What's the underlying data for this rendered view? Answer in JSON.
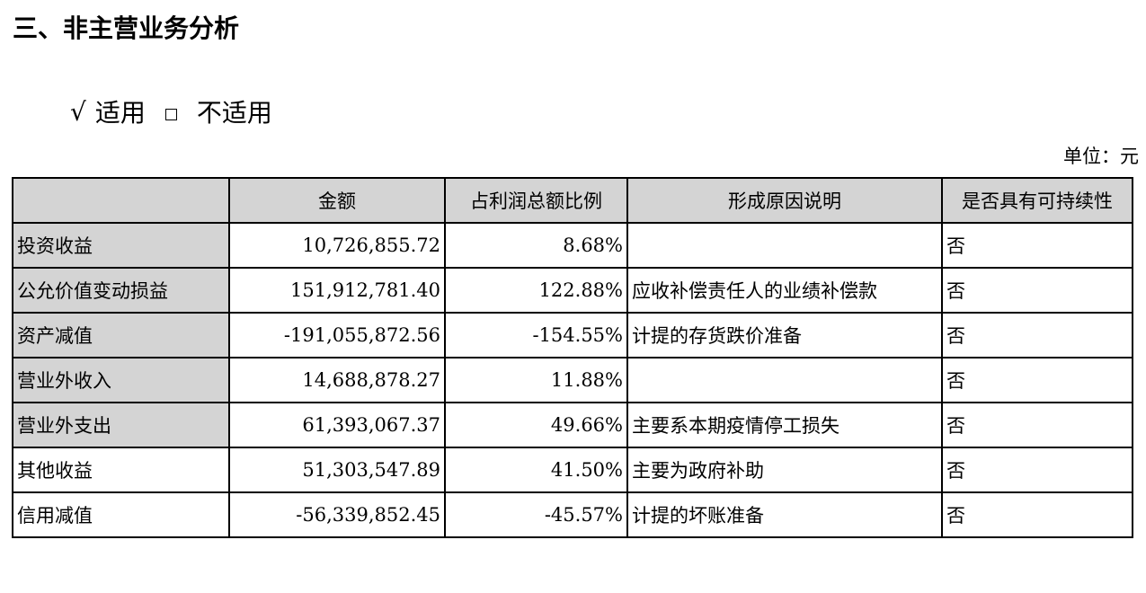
{
  "section_title": "三、非主营业务分析",
  "applicability": {
    "check_mark": "√",
    "applicable_label": "适用",
    "not_applicable_label": "不适用"
  },
  "unit_label": "单位：元",
  "table": {
    "headers": [
      "",
      "金额",
      "占利润总额比例",
      "形成原因说明",
      "是否具有可持续性"
    ],
    "rows": [
      {
        "item": "投资收益",
        "amount": "10,726,855.72",
        "ratio": "8.68%",
        "reason": "",
        "sustainable": "否"
      },
      {
        "item": "公允价值变动损益",
        "amount": "151,912,781.40",
        "ratio": "122.88%",
        "reason": "应收补偿责任人的业绩补偿款",
        "sustainable": "否"
      },
      {
        "item": "资产减值",
        "amount": "-191,055,872.56",
        "ratio": "-154.55%",
        "reason": "计提的存货跌价准备",
        "sustainable": "否"
      },
      {
        "item": "营业外收入",
        "amount": "14,688,878.27",
        "ratio": "11.88%",
        "reason": "",
        "sustainable": "否"
      },
      {
        "item": "营业外支出",
        "amount": "61,393,067.37",
        "ratio": "49.66%",
        "reason": "主要系本期疫情停工损失",
        "sustainable": "否"
      },
      {
        "item": "其他收益",
        "amount": "51,303,547.89",
        "ratio": "41.50%",
        "reason": "主要为政府补助",
        "sustainable": "否"
      },
      {
        "item": "信用减值",
        "amount": "-56,339,852.45",
        "ratio": "-45.57%",
        "reason": "计提的坏账准备",
        "sustainable": "否"
      }
    ]
  }
}
